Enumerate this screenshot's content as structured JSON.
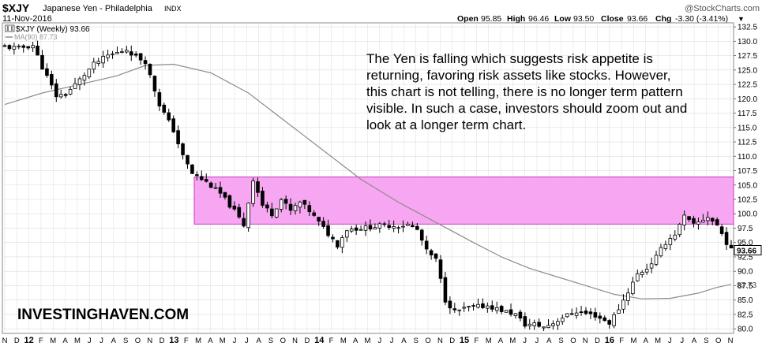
{
  "header": {
    "symbol": "$XJY",
    "name": "Japanese Yen - Philadelphia",
    "exchange": "INDX",
    "date": "11-Nov-2016",
    "credit": "@StockCharts.com",
    "ohlc": [
      {
        "label": "Open",
        "value": "95.85"
      },
      {
        "label": "High",
        "value": "96.46"
      },
      {
        "label": "Low",
        "value": "93.50"
      },
      {
        "label": "Close",
        "value": "93.66"
      },
      {
        "label": "Chg",
        "value": "-3.30 (-3.41%)"
      }
    ],
    "change_arrow": "▼"
  },
  "legend": {
    "price": "$XJY (Weekly) 93.66",
    "ma": "MA(90) 87.73"
  },
  "annotation": {
    "lines": [
      "The Yen is falling which suggests risk appetite is",
      "returning, favoring risk assets like stocks. However,",
      "this chart is not telling, there is no longer term pattern",
      "visible. In such a case, investors should zoom out and",
      "look at a longer term chart."
    ]
  },
  "watermark": "INVESTINGHAVEN.COM",
  "colors": {
    "zone_fill": "#f7a6f2",
    "zone_stroke": "#c83cc0",
    "ma_line": "#8c8c8c",
    "candle": "#000000",
    "grid": "#dddddd"
  },
  "chart_data": {
    "type": "candlestick",
    "frequency": "weekly",
    "y_ticks": [
      80.0,
      82.5,
      85.0,
      87.5,
      90.0,
      92.5,
      95.0,
      97.5,
      100.0,
      102.5,
      105.0,
      107.5,
      110.0,
      112.5,
      115.0,
      117.5,
      120.0,
      122.5,
      125.0,
      127.5,
      130.0,
      132.5
    ],
    "ylim": [
      79.2,
      133.2
    ],
    "last_value": 93.66,
    "ma_value": 87.73,
    "x_ticks": [
      "N",
      "D",
      "12",
      "F",
      "M",
      "A",
      "M",
      "J",
      "J",
      "A",
      "S",
      "O",
      "N",
      "D",
      "13",
      "F",
      "M",
      "A",
      "M",
      "J",
      "J",
      "A",
      "S",
      "O",
      "N",
      "D",
      "14",
      "F",
      "M",
      "A",
      "M",
      "J",
      "J",
      "A",
      "S",
      "O",
      "N",
      "D",
      "15",
      "F",
      "M",
      "A",
      "M",
      "J",
      "J",
      "A",
      "S",
      "O",
      "N",
      "D",
      "16",
      "F",
      "M",
      "A",
      "M",
      "J",
      "J",
      "A",
      "S",
      "O",
      "N"
    ],
    "x_bold_ticks": [
      "12",
      "13",
      "14",
      "15",
      "16"
    ],
    "shaded_zone": {
      "from": 98.2,
      "to": 106.4
    },
    "price_path": [
      [
        0,
        129.0
      ],
      [
        3,
        128.8
      ],
      [
        6,
        129.3
      ],
      [
        8,
        125.5
      ],
      [
        11,
        120.5
      ],
      [
        13,
        120.8
      ],
      [
        16,
        123.3
      ],
      [
        19,
        126.0
      ],
      [
        22,
        127.5
      ],
      [
        24,
        128.0
      ],
      [
        26,
        128.6
      ],
      [
        28,
        127.3
      ],
      [
        30,
        126.5
      ],
      [
        33,
        119.0
      ],
      [
        36,
        114.5
      ],
      [
        38,
        110.0
      ],
      [
        40,
        107.0
      ],
      [
        43,
        105.5
      ],
      [
        46,
        103.5
      ],
      [
        49,
        100.5
      ],
      [
        51,
        98.0
      ],
      [
        53,
        106.0
      ],
      [
        55,
        101.5
      ],
      [
        57,
        100.0
      ],
      [
        59,
        102.5
      ],
      [
        61,
        100.5
      ],
      [
        63,
        102.0
      ],
      [
        65,
        100.5
      ],
      [
        66,
        99.5
      ],
      [
        69,
        96.5
      ],
      [
        71,
        94.6
      ],
      [
        73,
        97.3
      ],
      [
        76,
        97.5
      ],
      [
        79,
        97.8
      ],
      [
        81,
        98.0
      ],
      [
        84,
        97.9
      ],
      [
        86,
        98.1
      ],
      [
        88,
        97.2
      ],
      [
        90,
        93.5
      ],
      [
        92,
        92.0
      ],
      [
        94,
        85.0
      ],
      [
        96,
        83.0
      ],
      [
        99,
        83.7
      ],
      [
        103,
        84.0
      ],
      [
        106,
        83.2
      ],
      [
        109,
        82.5
      ],
      [
        111,
        80.7
      ],
      [
        113,
        80.8
      ],
      [
        115,
        80.3
      ],
      [
        117,
        81.0
      ],
      [
        119,
        82.0
      ],
      [
        122,
        83.0
      ],
      [
        126,
        82.3
      ],
      [
        129,
        81.0
      ],
      [
        131,
        83.5
      ],
      [
        133,
        86.5
      ],
      [
        135,
        89.5
      ],
      [
        137,
        90.5
      ],
      [
        139,
        92.5
      ],
      [
        141,
        95.0
      ],
      [
        143,
        96.5
      ],
      [
        145,
        99.5
      ],
      [
        147,
        98.0
      ],
      [
        150,
        99.5
      ],
      [
        152,
        98.0
      ],
      [
        154,
        95.0
      ],
      [
        155,
        93.66
      ]
    ],
    "ma_path": [
      [
        0,
        119.0
      ],
      [
        8,
        121.0
      ],
      [
        16,
        122.5
      ],
      [
        24,
        124.0
      ],
      [
        30,
        125.8
      ],
      [
        36,
        126.0
      ],
      [
        44,
        124.5
      ],
      [
        52,
        121.0
      ],
      [
        60,
        116.0
      ],
      [
        68,
        111.0
      ],
      [
        76,
        106.0
      ],
      [
        84,
        102.0
      ],
      [
        92,
        98.5
      ],
      [
        100,
        95.0
      ],
      [
        106,
        92.5
      ],
      [
        112,
        90.5
      ],
      [
        118,
        89.0
      ],
      [
        124,
        87.5
      ],
      [
        130,
        86.0
      ],
      [
        136,
        85.2
      ],
      [
        142,
        85.3
      ],
      [
        148,
        86.2
      ],
      [
        152,
        87.2
      ],
      [
        155,
        87.73
      ]
    ]
  }
}
